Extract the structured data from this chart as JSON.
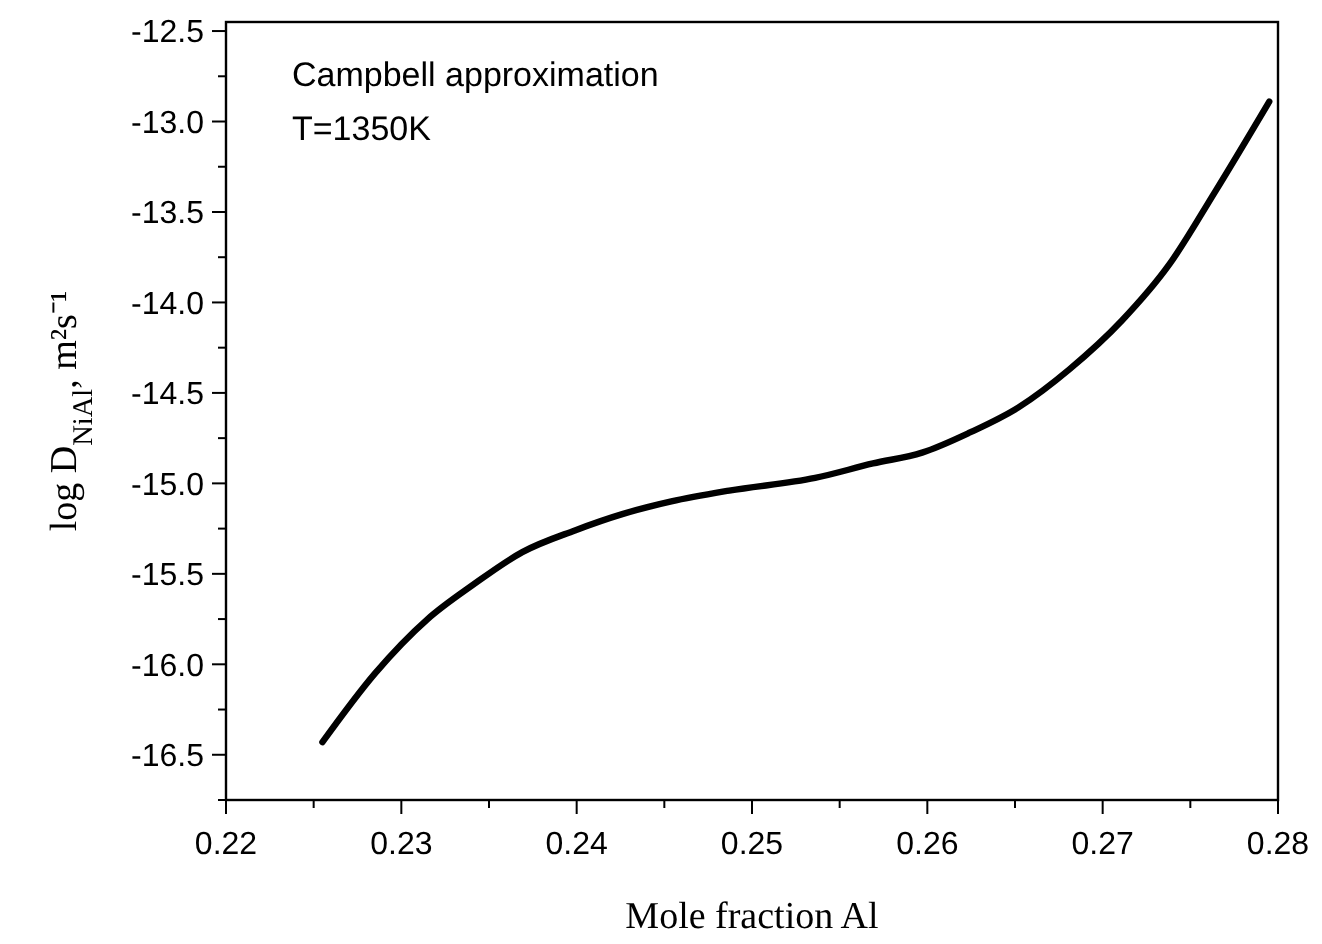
{
  "chart_data": {
    "type": "line",
    "xlabel": "Mole fraction Al",
    "ylabel": "log D$_{NiAl}$, m²s⁻¹",
    "annotations": [
      "Campbell approximation",
      "T=1350K"
    ],
    "x": [
      0.2255,
      0.2285,
      0.2315,
      0.2341,
      0.2369,
      0.2399,
      0.2426,
      0.2454,
      0.2487,
      0.2536,
      0.2569,
      0.2597,
      0.2624,
      0.2652,
      0.2681,
      0.2711,
      0.2738,
      0.2764,
      0.2795
    ],
    "series": [
      {
        "color": "#000000",
        "values": [
          -16.43,
          -16.05,
          -15.75,
          -15.56,
          -15.38,
          -15.26,
          -15.17,
          -15.1,
          -15.04,
          -14.97,
          -14.89,
          -14.83,
          -14.72,
          -14.58,
          -14.37,
          -14.1,
          -13.79,
          -13.39,
          -12.89
        ]
      }
    ],
    "xlim": [
      0.22,
      0.28
    ],
    "xticks": [
      0.22,
      {
        "value": 0.225,
        "label": null
      },
      0.23,
      {
        "value": 0.235,
        "label": null
      },
      0.24,
      {
        "value": 0.245,
        "label": null
      },
      0.25,
      {
        "value": 0.255,
        "label": null
      },
      0.26,
      {
        "value": 0.265,
        "label": null
      },
      0.27,
      {
        "value": 0.275,
        "label": null
      },
      0.28
    ],
    "ylim": [
      -16.75,
      -12.45
    ],
    "yticks": [
      {
        "value": -16.75,
        "label": null
      },
      -16.5,
      {
        "value": -16.25,
        "label": null
      },
      {
        "value": -16,
        "label": "-16.0"
      },
      {
        "value": -15.75,
        "label": null
      },
      -15.5,
      {
        "value": -15.25,
        "label": null
      },
      {
        "value": -15,
        "label": "-15.0"
      },
      {
        "value": -14.75,
        "label": null
      },
      -14.5,
      {
        "value": -14.25,
        "label": null
      },
      {
        "value": -14,
        "label": "-14.0"
      },
      {
        "value": -13.75,
        "label": null
      },
      -13.5,
      {
        "value": -13.25,
        "label": null
      },
      {
        "value": -13,
        "label": "-13.0"
      },
      {
        "value": -12.75,
        "label": null
      },
      -12.5
    ],
    "grid": false,
    "marker": "none",
    "line_style": "solid"
  }
}
